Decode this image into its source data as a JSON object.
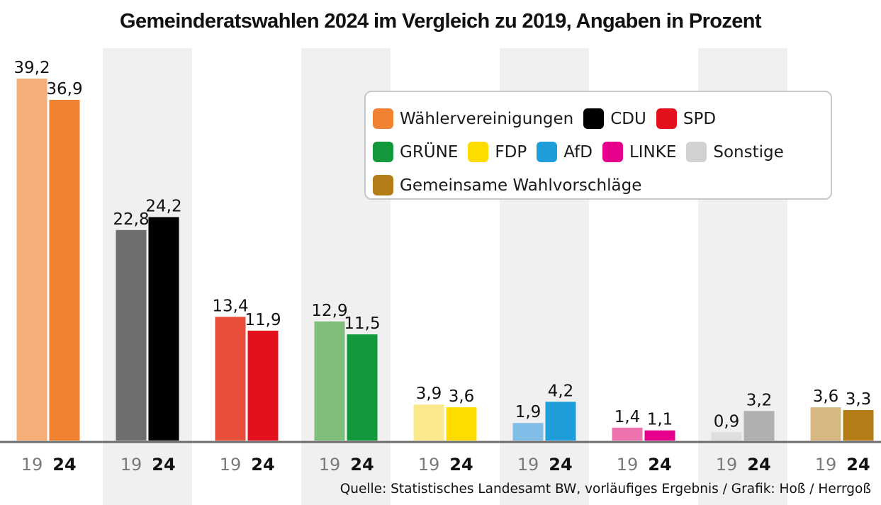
{
  "title": "Gemeinderatswahlen 2024 im Vergleich zu 2019, Angaben in Prozent",
  "source": "Quelle: Statistisches Landesamt BW, vorläufiges Ergebnis / Grafik: Hoß / Herrgoß",
  "legend": {
    "rows": [
      [
        {
          "label": "Wählervereinigungen",
          "color": "#f08232"
        },
        {
          "label": "CDU",
          "color": "#000000"
        },
        {
          "label": "SPD",
          "color": "#e3101d"
        }
      ],
      [
        {
          "label": "GRÜNE",
          "color": "#13993c"
        },
        {
          "label": "FDP",
          "color": "#ffdc00"
        },
        {
          "label": "AfD",
          "color": "#1e9fdc"
        },
        {
          "label": "LINKE",
          "color": "#e6008c"
        },
        {
          "label": "Sonstige",
          "color": "#d2d2d2"
        }
      ],
      [
        {
          "label": "Gemeinsame Wahlvorschläge",
          "color": "#b47c16"
        }
      ]
    ]
  },
  "chart_data": {
    "type": "bar",
    "categories": [
      "Wählervereinigungen",
      "CDU",
      "SPD",
      "GRÜNE",
      "FDP",
      "AfD",
      "LINKE",
      "Sonstige",
      "Gemeinsame Wahlvorschläge"
    ],
    "series": [
      {
        "name": "19",
        "values": [
          39.2,
          22.8,
          13.4,
          12.9,
          3.9,
          1.9,
          1.4,
          0.9,
          3.6
        ],
        "labels": [
          "39,2",
          "22,8",
          "13,4",
          "12,9",
          "3,9",
          "1,9",
          "1,4",
          "0,9",
          "3,6"
        ],
        "colors": [
          "#f5ae78",
          "#6e6e6e",
          "#e84e3a",
          "#7fbf7b",
          "#fde98d",
          "#82bde8",
          "#ee72ae",
          "#dedede",
          "#d8b882"
        ]
      },
      {
        "name": "24",
        "values": [
          36.9,
          24.2,
          11.9,
          11.5,
          3.6,
          4.2,
          1.1,
          3.2,
          3.3
        ],
        "labels": [
          "36,9",
          "24,2",
          "11,9",
          "11,5",
          "3,6",
          "4,2",
          "1,1",
          "3,2",
          "3,3"
        ],
        "colors": [
          "#f08232",
          "#000000",
          "#e3101d",
          "#13993c",
          "#ffdc00",
          "#1e9fdc",
          "#e6008c",
          "#b0b0b0",
          "#b47c16"
        ]
      }
    ],
    "ylim": [
      0,
      39.2
    ],
    "grid": false,
    "legend_position": "top-right",
    "band_color": "#f0f0f0",
    "axis_color": "#6e6e6e"
  }
}
